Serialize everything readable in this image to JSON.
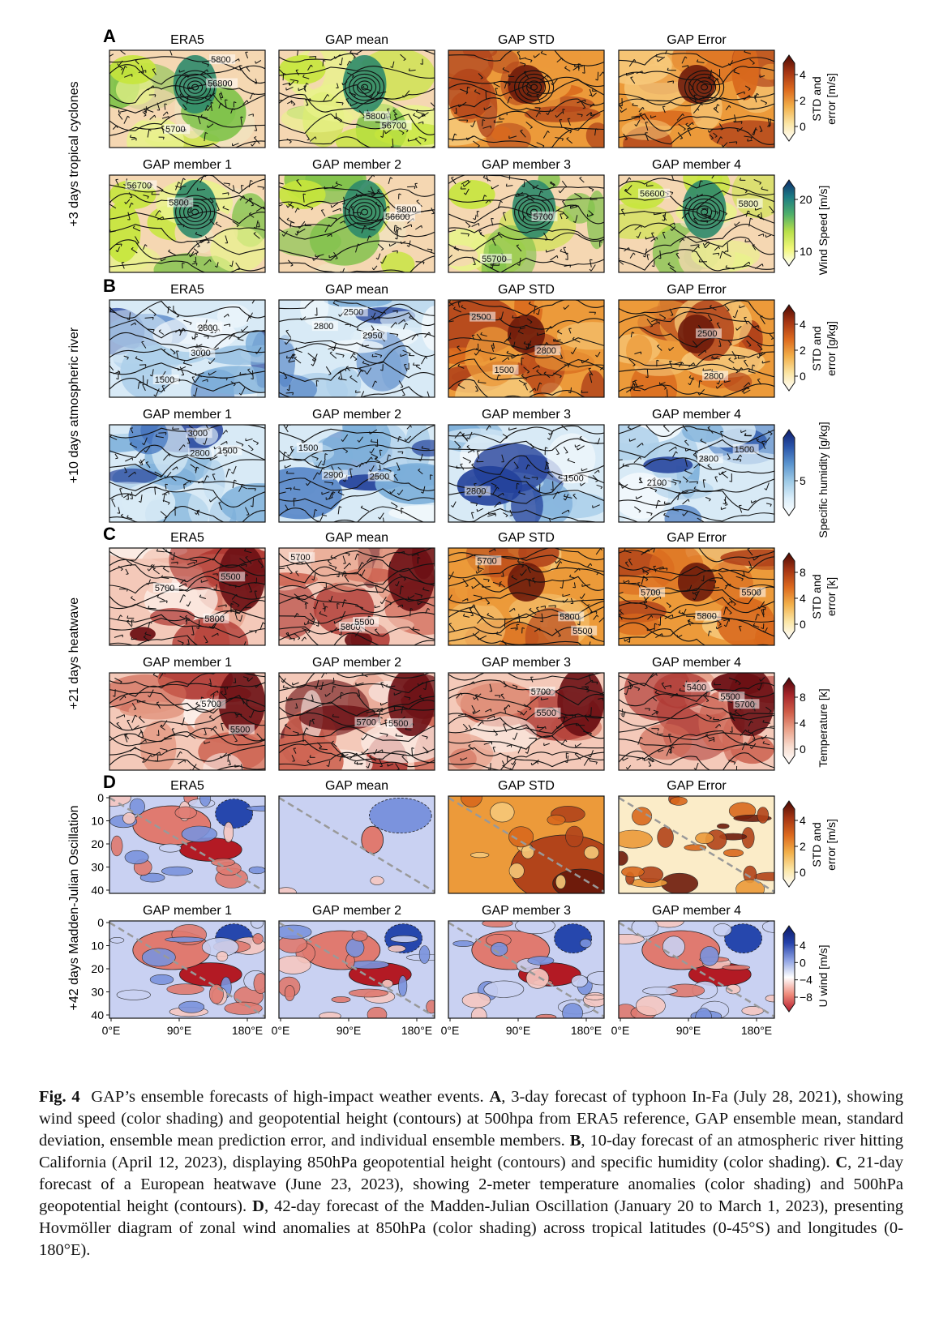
{
  "figure": {
    "row_labels": [
      "+3 days tropical cyclones",
      "+10 days atmospheric river",
      "+21 days heatwave",
      "+42 days Madden-Julian Oscillation"
    ],
    "sections": [
      {
        "letter": "A",
        "top_titles": [
          "ERA5",
          "GAP mean",
          "GAP STD",
          "GAP Error"
        ],
        "bottom_titles": [
          "GAP member 1",
          "GAP member 2",
          "GAP member 3",
          "GAP member 4"
        ],
        "top_colorbar": {
          "label": "STD and error [m/s]",
          "ticks": [
            "4",
            "2",
            "0"
          ]
        },
        "bottom_colorbar": {
          "label": "Wind Speed [m/s]",
          "ticks": [
            "20",
            "10"
          ]
        },
        "contour_labels": [
          [
            "56800",
            "5700",
            "5800"
          ],
          [
            "56700",
            "5800"
          ],
          [],
          [],
          [
            "56700",
            "5800"
          ],
          [
            "56600",
            "5800"
          ],
          [
            "55700",
            "5700"
          ],
          [
            "56600",
            "5800"
          ]
        ]
      },
      {
        "letter": "B",
        "top_titles": [
          "ERA5",
          "GAP mean",
          "GAP STD",
          "GAP Error"
        ],
        "bottom_titles": [
          "GAP member 1",
          "GAP member 2",
          "GAP member 3",
          "GAP member 4"
        ],
        "top_colorbar": {
          "label": "STD and error [g/kg]",
          "ticks": [
            "4",
            "2",
            "0"
          ]
        },
        "bottom_colorbar": {
          "label": "Specific humidity [g/kg]",
          "ticks": [
            "5"
          ]
        },
        "contour_labels": [
          [
            "2800",
            "3000",
            "1500"
          ],
          [
            "2500",
            "2800",
            "2950"
          ],
          [
            "2500",
            "2800",
            "1500"
          ],
          [
            "2500",
            "2800"
          ],
          [
            "1500",
            "2800",
            "3000"
          ],
          [
            "1500",
            "2900",
            "2500"
          ],
          [
            "1500",
            "2800"
          ],
          [
            "2100",
            "1500",
            "2800"
          ]
        ]
      },
      {
        "letter": "C",
        "top_titles": [
          "ERA5",
          "GAP mean",
          "GAP STD",
          "GAP Error"
        ],
        "bottom_titles": [
          "GAP member 1",
          "GAP member 2",
          "GAP member 3",
          "GAP member 4"
        ],
        "top_colorbar": {
          "label": "STD and error [k]",
          "ticks": [
            "8",
            "4",
            "0"
          ]
        },
        "bottom_colorbar": {
          "label": "Temperature [k]",
          "ticks": [
            "8",
            "4",
            "0"
          ]
        },
        "contour_labels": [
          [
            "5800",
            "5500",
            "5700"
          ],
          [
            "5800",
            "5500",
            "5700"
          ],
          [
            "5500",
            "5800",
            "5700"
          ],
          [
            "5800",
            "5500",
            "5700"
          ],
          [
            "5500",
            "5700"
          ],
          [
            "5500",
            "5700"
          ],
          [
            "5500",
            "5700"
          ],
          [
            "5400",
            "5700",
            "5500"
          ]
        ]
      },
      {
        "letter": "D",
        "top_titles": [
          "ERA5",
          "GAP mean",
          "GAP STD",
          "GAP Error"
        ],
        "bottom_titles": [
          "GAP member 1",
          "GAP member 2",
          "GAP member 3",
          "GAP member 4"
        ],
        "top_colorbar": {
          "label": "STD and error [m/s]",
          "ticks": [
            "4",
            "2",
            "0"
          ]
        },
        "bottom_colorbar": {
          "label": "U wind [m/s]",
          "ticks": [
            "4",
            "0",
            "−4",
            "−8"
          ]
        },
        "y_ticks": [
          "0",
          "10",
          "20",
          "30",
          "40"
        ],
        "x_ticks": [
          "0°E",
          "90°E",
          "180°E"
        ]
      }
    ]
  },
  "caption": {
    "label": "Fig. 4",
    "intro": "GAP’s ensemble forecasts of high-impact weather events.",
    "parts": [
      {
        "letter": "A",
        "text": ", 3-day forecast of typhoon In-Fa (July 28, 2021), showing wind speed (color shading) and geopotential height (contours) at 500hpa from ERA5 reference, GAP ensemble mean, standard deviation, ensemble mean prediction error, and individual ensemble members."
      },
      {
        "letter": "B",
        "text": ", 10-day forecast of an atmospheric river hitting California (April 12, 2023), displaying 850hPa geopotential height (contours) and specific humidity (color shading)."
      },
      {
        "letter": "C",
        "text": ", 21-day forecast of a European heatwave (June 23, 2023), showing 2-meter temperature anomalies (color shading) and 500hPa geopotential height (contours)."
      },
      {
        "letter": "D",
        "text": ", 42-day forecast of the Madden-Julian Oscillation (January 20 to March 1, 2023), presenting Hovmöller diagram of zonal wind anomalies at 850hPa (color shading) across tropical latitudes (0-45°S) and longitudes (0-180°E)."
      }
    ]
  },
  "colors": {
    "wind_low": "#f3d2a8",
    "wind_high": "#1f5f7a",
    "wind_mid": "#c8e63a",
    "std_low": "#fbeac4",
    "std_high": "#7a1f0e",
    "humidity_low": "#eaf3fb",
    "humidity_high": "#1f3f9c",
    "temp_low": "#fbe8e0",
    "temp_high": "#6e0f12",
    "uwind_pos": "#b2182b",
    "uwind_neg": "#2140a8"
  }
}
